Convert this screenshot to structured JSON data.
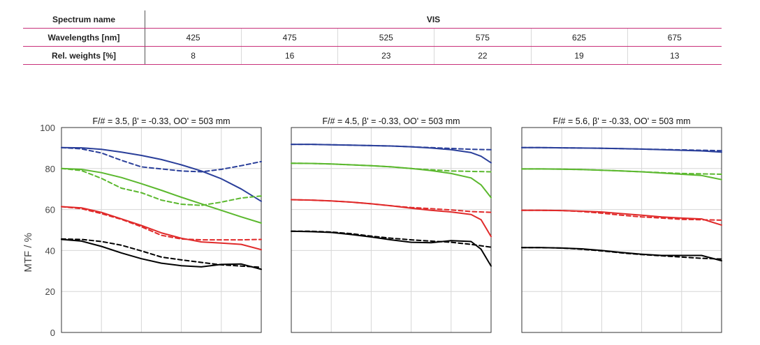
{
  "spectrum_table": {
    "spectrum_name_label": "Spectrum name",
    "spectrum_value": "VIS",
    "wavelengths_label": "Wavelengths [nm]",
    "wavelengths": [
      "425",
      "475",
      "525",
      "575",
      "625",
      "675"
    ],
    "weights_label": "Rel. weights [%]",
    "weights": [
      "8",
      "16",
      "23",
      "22",
      "19",
      "13"
    ]
  },
  "chart_data": [
    {
      "type": "line",
      "title": "F/# = 3.5, β' = -0.33, OO' = 503 mm",
      "ylabel": "MTF / %",
      "ylim": [
        0,
        100
      ],
      "yticks": [
        "100",
        "80",
        "60",
        "40",
        "20",
        "0"
      ],
      "xlim": [
        0,
        1
      ],
      "grid": true,
      "series": [
        {
          "color": "#2a3f9a",
          "style": "solid",
          "x": [
            0,
            0.1,
            0.2,
            0.3,
            0.4,
            0.5,
            0.6,
            0.7,
            0.8,
            0.9,
            1.0
          ],
          "y": [
            90.2,
            90.1,
            89.4,
            88.0,
            86.4,
            84.4,
            81.8,
            78.8,
            75.0,
            70.0,
            64.0
          ]
        },
        {
          "color": "#2a3f9a",
          "style": "dashed",
          "x": [
            0,
            0.1,
            0.2,
            0.3,
            0.4,
            0.5,
            0.6,
            0.7,
            0.8,
            0.9,
            1.0
          ],
          "y": [
            90.2,
            89.6,
            87.6,
            84.0,
            80.8,
            79.8,
            78.8,
            78.4,
            79.6,
            81.4,
            83.4
          ]
        },
        {
          "color": "#5bb82e",
          "style": "solid",
          "x": [
            0,
            0.1,
            0.2,
            0.3,
            0.4,
            0.5,
            0.6,
            0.7,
            0.8,
            0.9,
            1.0
          ],
          "y": [
            80.0,
            79.6,
            78.0,
            75.6,
            72.6,
            69.4,
            66.0,
            62.8,
            59.6,
            56.4,
            53.4
          ]
        },
        {
          "color": "#5bb82e",
          "style": "dashed",
          "x": [
            0,
            0.1,
            0.2,
            0.3,
            0.4,
            0.5,
            0.6,
            0.7,
            0.8,
            0.9,
            1.0
          ],
          "y": [
            80.0,
            79.0,
            75.2,
            70.4,
            68.2,
            64.6,
            62.6,
            62.0,
            63.6,
            65.6,
            66.6
          ]
        },
        {
          "color": "#e02a2a",
          "style": "solid",
          "x": [
            0,
            0.1,
            0.2,
            0.3,
            0.4,
            0.5,
            0.6,
            0.7,
            0.8,
            0.9,
            1.0
          ],
          "y": [
            61.4,
            60.8,
            58.6,
            55.4,
            52.2,
            48.6,
            46.0,
            44.2,
            43.6,
            43.0,
            40.4
          ]
        },
        {
          "color": "#e02a2a",
          "style": "dashed",
          "x": [
            0,
            0.1,
            0.2,
            0.3,
            0.4,
            0.5,
            0.6,
            0.7,
            0.8,
            0.9,
            1.0
          ],
          "y": [
            61.4,
            60.4,
            58.0,
            55.2,
            51.6,
            47.4,
            45.6,
            45.2,
            45.2,
            45.2,
            45.4
          ]
        },
        {
          "color": "#000000",
          "style": "solid",
          "x": [
            0,
            0.1,
            0.2,
            0.3,
            0.4,
            0.5,
            0.6,
            0.7,
            0.8,
            0.9,
            1.0
          ],
          "y": [
            45.4,
            44.6,
            42.0,
            38.8,
            36.0,
            33.8,
            32.6,
            32.0,
            33.2,
            33.4,
            30.8
          ]
        },
        {
          "color": "#000000",
          "style": "dashed",
          "x": [
            0,
            0.1,
            0.2,
            0.3,
            0.4,
            0.5,
            0.6,
            0.7,
            0.8,
            0.9,
            1.0
          ],
          "y": [
            45.6,
            45.4,
            44.4,
            42.6,
            39.8,
            36.8,
            35.4,
            34.2,
            33.0,
            32.4,
            31.8
          ]
        }
      ]
    },
    {
      "type": "line",
      "title": "F/# = 4.5, β' = -0.33, OO' = 503 mm",
      "ylim": [
        0,
        100
      ],
      "xlim": [
        0,
        1
      ],
      "grid": true,
      "series": [
        {
          "color": "#2a3f9a",
          "style": "solid",
          "x": [
            0,
            0.1,
            0.2,
            0.3,
            0.4,
            0.5,
            0.6,
            0.7,
            0.8,
            0.9,
            0.95,
            1.0
          ],
          "y": [
            91.8,
            91.8,
            91.6,
            91.4,
            91.2,
            91.0,
            90.6,
            90.0,
            89.2,
            87.8,
            86.0,
            82.8
          ]
        },
        {
          "color": "#2a3f9a",
          "style": "dashed",
          "x": [
            0,
            0.1,
            0.2,
            0.3,
            0.4,
            0.5,
            0.6,
            0.7,
            0.8,
            0.9,
            1.0
          ],
          "y": [
            91.8,
            91.8,
            91.6,
            91.4,
            91.2,
            91.0,
            90.6,
            90.2,
            89.8,
            89.4,
            89.2
          ]
        },
        {
          "color": "#5bb82e",
          "style": "solid",
          "x": [
            0,
            0.1,
            0.2,
            0.3,
            0.4,
            0.5,
            0.6,
            0.7,
            0.8,
            0.9,
            0.95,
            1.0
          ],
          "y": [
            82.6,
            82.5,
            82.2,
            81.8,
            81.4,
            80.8,
            80.0,
            79.0,
            77.6,
            75.4,
            72.0,
            65.8
          ]
        },
        {
          "color": "#5bb82e",
          "style": "dashed",
          "x": [
            0,
            0.1,
            0.2,
            0.3,
            0.4,
            0.5,
            0.6,
            0.7,
            0.8,
            0.9,
            1.0
          ],
          "y": [
            82.6,
            82.5,
            82.2,
            81.8,
            81.4,
            80.8,
            80.0,
            79.4,
            78.8,
            78.6,
            78.4
          ]
        },
        {
          "color": "#e02a2a",
          "style": "solid",
          "x": [
            0,
            0.1,
            0.2,
            0.3,
            0.4,
            0.5,
            0.6,
            0.7,
            0.8,
            0.9,
            0.95,
            1.0
          ],
          "y": [
            64.8,
            64.6,
            64.2,
            63.6,
            62.8,
            61.8,
            60.6,
            59.6,
            58.8,
            57.6,
            55.0,
            46.8
          ]
        },
        {
          "color": "#e02a2a",
          "style": "dashed",
          "x": [
            0,
            0.1,
            0.2,
            0.3,
            0.4,
            0.5,
            0.6,
            0.7,
            0.8,
            0.9,
            1.0
          ],
          "y": [
            64.8,
            64.6,
            64.2,
            63.6,
            62.8,
            61.8,
            61.0,
            60.4,
            59.8,
            59.0,
            58.6
          ]
        },
        {
          "color": "#000000",
          "style": "solid",
          "x": [
            0,
            0.1,
            0.2,
            0.3,
            0.4,
            0.5,
            0.6,
            0.7,
            0.8,
            0.9,
            0.95,
            1.0
          ],
          "y": [
            49.4,
            49.2,
            48.8,
            47.8,
            46.6,
            45.2,
            44.0,
            43.8,
            44.8,
            44.4,
            40.6,
            32.4
          ]
        },
        {
          "color": "#000000",
          "style": "dashed",
          "x": [
            0,
            0.1,
            0.2,
            0.3,
            0.4,
            0.5,
            0.6,
            0.7,
            0.8,
            0.9,
            1.0
          ],
          "y": [
            49.4,
            49.4,
            49.0,
            48.2,
            47.0,
            46.0,
            45.2,
            44.6,
            44.0,
            43.0,
            41.6
          ]
        }
      ]
    },
    {
      "type": "line",
      "title": "F/# = 5.6, β' = -0.33, OO' = 503 mm",
      "ylim": [
        0,
        100
      ],
      "xlim": [
        0,
        1
      ],
      "grid": true,
      "series": [
        {
          "color": "#2a3f9a",
          "style": "solid",
          "x": [
            0,
            0.1,
            0.2,
            0.3,
            0.4,
            0.5,
            0.6,
            0.7,
            0.8,
            0.9,
            1.0
          ],
          "y": [
            90.2,
            90.2,
            90.1,
            90.0,
            89.9,
            89.7,
            89.5,
            89.2,
            88.9,
            88.6,
            88.0
          ]
        },
        {
          "color": "#2a3f9a",
          "style": "dashed",
          "x": [
            0,
            0.1,
            0.2,
            0.3,
            0.4,
            0.5,
            0.6,
            0.7,
            0.8,
            0.9,
            1.0
          ],
          "y": [
            90.2,
            90.2,
            90.1,
            90.0,
            89.9,
            89.7,
            89.5,
            89.3,
            89.1,
            88.9,
            88.7
          ]
        },
        {
          "color": "#5bb82e",
          "style": "solid",
          "x": [
            0,
            0.1,
            0.2,
            0.3,
            0.4,
            0.5,
            0.6,
            0.7,
            0.8,
            0.9,
            1.0
          ],
          "y": [
            79.8,
            79.8,
            79.7,
            79.5,
            79.2,
            78.8,
            78.4,
            77.8,
            77.2,
            76.6,
            74.6
          ]
        },
        {
          "color": "#5bb82e",
          "style": "dashed",
          "x": [
            0,
            0.1,
            0.2,
            0.3,
            0.4,
            0.5,
            0.6,
            0.7,
            0.8,
            0.9,
            1.0
          ],
          "y": [
            79.8,
            79.8,
            79.7,
            79.5,
            79.2,
            78.8,
            78.4,
            78.0,
            77.6,
            77.4,
            77.2
          ]
        },
        {
          "color": "#e02a2a",
          "style": "solid",
          "x": [
            0,
            0.1,
            0.2,
            0.3,
            0.4,
            0.5,
            0.6,
            0.7,
            0.8,
            0.9,
            1.0
          ],
          "y": [
            59.6,
            59.6,
            59.5,
            59.2,
            58.8,
            58.0,
            57.2,
            56.4,
            55.8,
            55.4,
            52.4
          ]
        },
        {
          "color": "#e02a2a",
          "style": "dashed",
          "x": [
            0,
            0.1,
            0.2,
            0.3,
            0.4,
            0.5,
            0.6,
            0.7,
            0.8,
            0.9,
            1.0
          ],
          "y": [
            59.6,
            59.6,
            59.5,
            59.0,
            58.2,
            57.2,
            56.4,
            55.8,
            55.2,
            55.0,
            54.8
          ]
        },
        {
          "color": "#000000",
          "style": "solid",
          "x": [
            0,
            0.1,
            0.2,
            0.3,
            0.4,
            0.5,
            0.6,
            0.7,
            0.8,
            0.9,
            1.0
          ],
          "y": [
            41.4,
            41.4,
            41.2,
            40.8,
            40.0,
            39.0,
            38.2,
            37.6,
            37.6,
            37.6,
            35.0
          ]
        },
        {
          "color": "#000000",
          "style": "dashed",
          "x": [
            0,
            0.1,
            0.2,
            0.3,
            0.4,
            0.5,
            0.6,
            0.7,
            0.8,
            0.9,
            1.0
          ],
          "y": [
            41.4,
            41.4,
            41.2,
            40.6,
            39.8,
            38.8,
            38.0,
            37.4,
            36.8,
            36.2,
            35.8
          ]
        }
      ]
    }
  ]
}
